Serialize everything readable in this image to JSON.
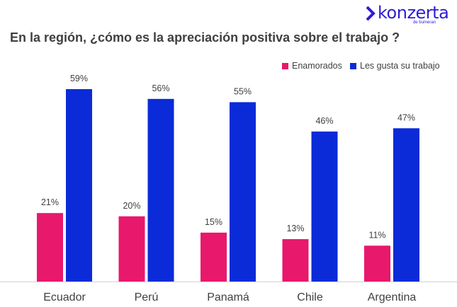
{
  "logo": {
    "brand": "konzerta",
    "tagline": "de bumeran"
  },
  "title": "En la región, ¿cómo es la apreciación positiva sobre el trabajo ?",
  "colors": {
    "Enamorados": "#e8186d",
    "Les gusta su trabajo": "#0b2bd8",
    "text": "#404040",
    "axis": "#d0d0d0"
  },
  "chart_data": {
    "type": "bar",
    "title": "En la región, ¿cómo es la apreciación positiva sobre el trabajo ?",
    "categories": [
      "Ecuador",
      "Perú",
      "Panamá",
      "Chile",
      "Argentina"
    ],
    "series": [
      {
        "name": "Enamorados",
        "values": [
          21,
          20,
          15,
          13,
          11
        ],
        "labels": [
          "21%",
          "20%",
          "15%",
          "13%",
          "11%"
        ]
      },
      {
        "name": "Les gusta su trabajo",
        "values": [
          59,
          56,
          55,
          46,
          47
        ],
        "labels": [
          "59%",
          "56%",
          "55%",
          "46%",
          "47%"
        ]
      }
    ],
    "ylim": [
      0,
      62
    ],
    "legend": "top-right",
    "grid": false
  }
}
